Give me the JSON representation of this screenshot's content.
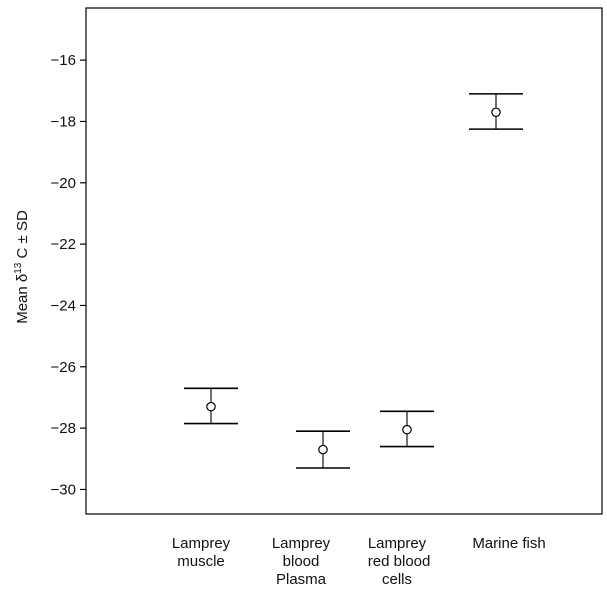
{
  "chart_data": {
    "type": "scatter",
    "title": "",
    "xlabel": "",
    "ylabel": "Mean δ13C ± SD",
    "ylabel_parts": {
      "prefix": "Mean δ",
      "superscript": "13",
      "suffix": "C ± SD"
    },
    "categories": [
      {
        "lines": [
          "Lamprey",
          "muscle"
        ]
      },
      {
        "lines": [
          "Lamprey",
          "blood",
          "Plasma"
        ]
      },
      {
        "lines": [
          "Lamprey",
          " red blood",
          "cells"
        ]
      },
      {
        "lines": [
          "Marine fish"
        ]
      }
    ],
    "series": [
      {
        "means": [
          -27.3,
          -28.7,
          -28.05,
          -17.7
        ],
        "sd_low": [
          -27.85,
          -29.3,
          -28.6,
          -18.25
        ],
        "sd_high": [
          -26.7,
          -28.1,
          -27.45,
          -17.1
        ]
      }
    ],
    "ylim": [
      -30.8,
      -14.3
    ],
    "yticks": [
      -30,
      -28,
      -26,
      -24,
      -22,
      -20,
      -18,
      -16
    ],
    "ytick_labels": [
      "−30",
      "−28",
      "−26",
      "−24",
      "−22",
      "−20",
      "−18",
      "−16"
    ],
    "grid": false,
    "colors": {
      "axis": "#000000",
      "marker": "#000000",
      "background": "#ffffff"
    }
  }
}
